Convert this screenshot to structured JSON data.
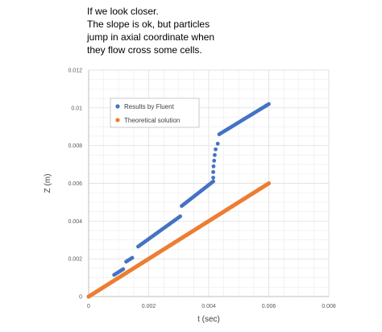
{
  "note": {
    "lines": [
      "If we look closer.",
      "The slope is ok, but particles",
      "jump in axial coordinate when",
      "they flow cross some cells."
    ]
  },
  "chart_data": {
    "type": "scatter",
    "xlabel": "t (sec)",
    "ylabel": "Z (m)",
    "xlim": [
      0,
      0.008
    ],
    "ylim": [
      0,
      0.012
    ],
    "x_ticks": [
      "0",
      "0.002",
      "0.004",
      "0.006",
      "0.008"
    ],
    "y_ticks": [
      "0",
      "0.002",
      "0.004",
      "0.006",
      "0.008",
      "0.01",
      "0.012"
    ],
    "grid": true,
    "legend_position": "top-left",
    "series": [
      {
        "name": "Results by Fluent",
        "color": "#4472C4",
        "segments": [
          [
            [
              0.00085,
              0.00115
            ],
            [
              0.00115,
              0.00145
            ]
          ],
          [
            [
              0.00125,
              0.00185
            ],
            [
              0.00145,
              0.00205
            ]
          ],
          [
            [
              0.00165,
              0.00265
            ],
            [
              0.00305,
              0.00425
            ]
          ],
          [
            [
              0.0031,
              0.0048
            ],
            [
              0.00415,
              0.0061
            ]
          ]
        ],
        "points": [
          [
            0.00415,
            0.0063
          ],
          [
            0.00415,
            0.0066
          ],
          [
            0.00416,
            0.0069
          ],
          [
            0.00418,
            0.0072
          ],
          [
            0.0042,
            0.0075
          ],
          [
            0.00423,
            0.0078
          ],
          [
            0.0043,
            0.0081
          ]
        ],
        "tail": [
          [
            0.00435,
            0.0086
          ],
          [
            0.006,
            0.0102
          ]
        ]
      },
      {
        "name": "Theoretical solution",
        "color": "#ED7D31",
        "x": [
          0,
          0.006
        ],
        "y": [
          0,
          0.006
        ]
      }
    ]
  }
}
